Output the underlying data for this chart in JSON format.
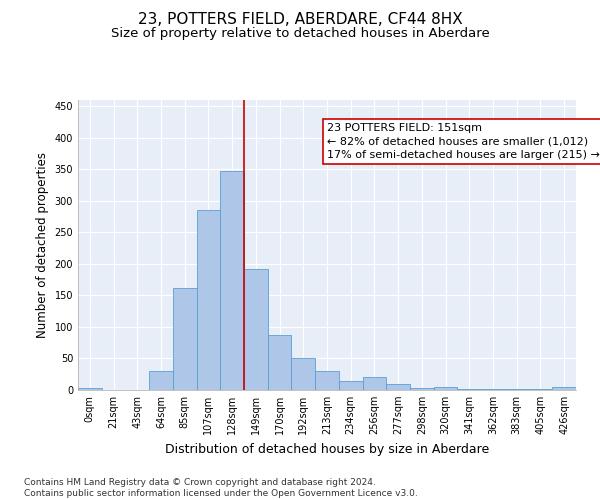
{
  "title": "23, POTTERS FIELD, ABERDARE, CF44 8HX",
  "subtitle": "Size of property relative to detached houses in Aberdare",
  "xlabel": "Distribution of detached houses by size in Aberdare",
  "ylabel": "Number of detached properties",
  "bin_labels": [
    "0sqm",
    "21sqm",
    "43sqm",
    "64sqm",
    "85sqm",
    "107sqm",
    "128sqm",
    "149sqm",
    "170sqm",
    "192sqm",
    "213sqm",
    "234sqm",
    "256sqm",
    "277sqm",
    "298sqm",
    "320sqm",
    "341sqm",
    "362sqm",
    "383sqm",
    "405sqm",
    "426sqm"
  ],
  "bar_heights": [
    3,
    0,
    0,
    30,
    162,
    285,
    347,
    192,
    88,
    50,
    30,
    15,
    20,
    10,
    3,
    5,
    2,
    1,
    1,
    1,
    4
  ],
  "bar_color": "#aec6e8",
  "bar_edge_color": "#5a9fd4",
  "vline_x_index": 7,
  "vline_color": "#cc0000",
  "annotation_text": "23 POTTERS FIELD: 151sqm\n← 82% of detached houses are smaller (1,012)\n17% of semi-detached houses are larger (215) →",
  "annotation_box_color": "#ffffff",
  "annotation_box_edge_color": "#cc0000",
  "ylim": [
    0,
    460
  ],
  "yticks": [
    0,
    50,
    100,
    150,
    200,
    250,
    300,
    350,
    400,
    450
  ],
  "bg_color": "#e8eef8",
  "footer": "Contains HM Land Registry data © Crown copyright and database right 2024.\nContains public sector information licensed under the Open Government Licence v3.0.",
  "title_fontsize": 11,
  "subtitle_fontsize": 9.5,
  "xlabel_fontsize": 9,
  "ylabel_fontsize": 8.5,
  "tick_fontsize": 7,
  "annotation_fontsize": 8,
  "footer_fontsize": 6.5
}
